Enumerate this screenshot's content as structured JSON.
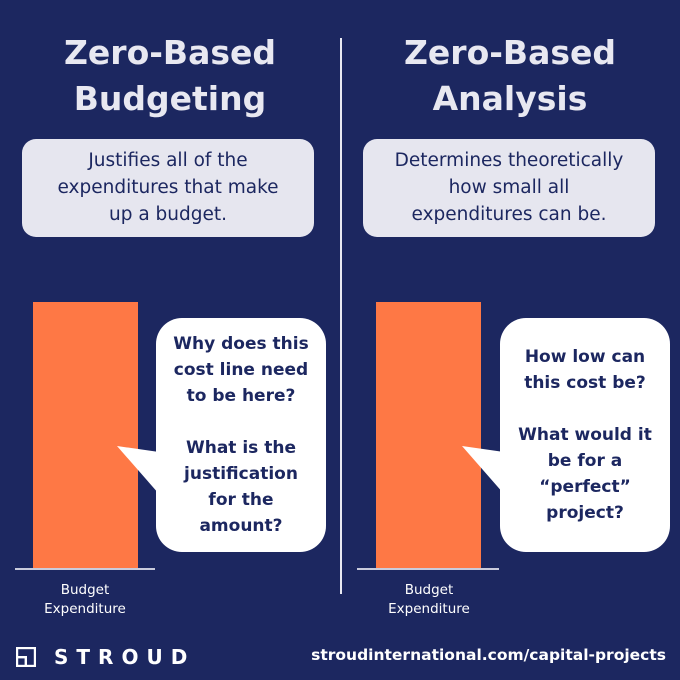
{
  "left": {
    "title": "Zero-Based\nBudgeting",
    "description": "Justifies all of the\nexpenditures that make\nup a budget.",
    "bar_label": "Budget\nExpenditure",
    "bubble": "Why does this\ncost line need\nto be here?\n\nWhat is the\njustification\nfor the\namount?"
  },
  "right": {
    "title": "Zero-Based\nAnalysis",
    "description": "Determines theoretically\nhow small all\nexpenditures can be.",
    "bar_label": "Budget\nExpenditure",
    "bubble": "How low can\nthis cost be?\n\nWhat would it\nbe for a\n“perfect”\nproject?"
  },
  "footer": {
    "brand": "STROUD",
    "link": "stroudinternational.com/capital-projects"
  },
  "colors": {
    "background": "#1c2760",
    "bar": "#fe7845",
    "box": "#e6e6ef",
    "bubble": "#ffffff"
  },
  "icons": {
    "logo": "stroud-logo-icon"
  }
}
